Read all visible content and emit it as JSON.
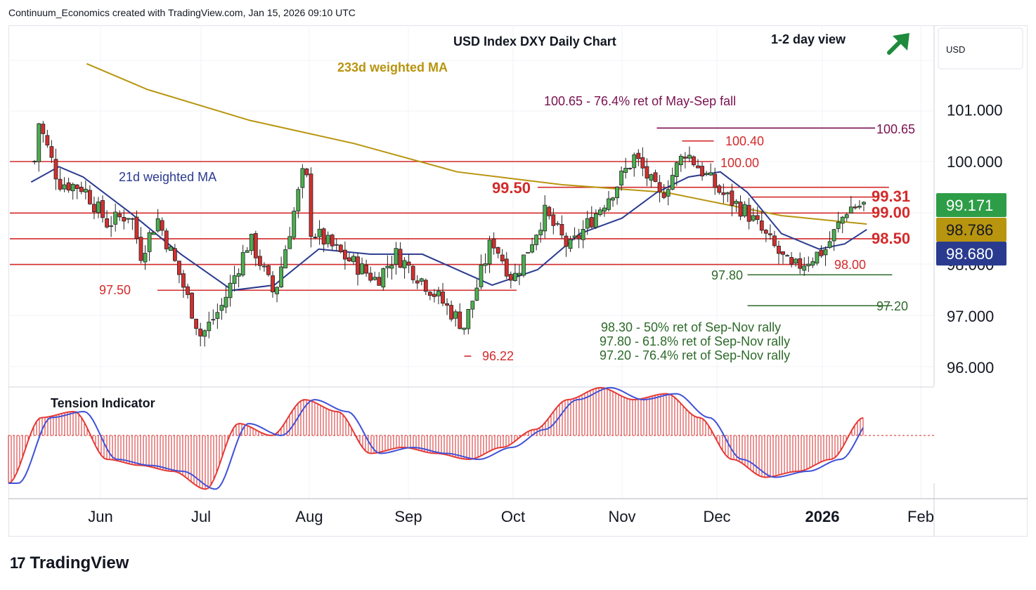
{
  "header": "Continuum_Economics created with TradingView.com, Jan 15, 2026 09:10 UTC",
  "footer": {
    "brand": "TradingView",
    "logo_icon": "tradingview-logo-icon"
  },
  "chart": {
    "title": "USD Index DXY Daily Chart",
    "view": "1-2 day view",
    "currency": "USD",
    "arrow_icon": "up-right-arrow-icon",
    "arrow_color": "#1e8a3c"
  },
  "chart_data": [
    {
      "type": "candlestick",
      "title": "USD Index DXY Daily Chart",
      "ylabel": "USD",
      "ylim": [
        95.7,
        101.95
      ],
      "y_ticks": [
        "96.000",
        "97.000",
        "98.000",
        "100.000",
        "101.000"
      ],
      "x_ticks": [
        "Jun",
        "Jul",
        "Aug",
        "Sep",
        "Oct",
        "Nov",
        "Dec",
        "2026",
        "Feb"
      ],
      "price_labels": [
        {
          "text": "99.171",
          "value": 99.171,
          "color": "#2e9d47"
        },
        {
          "text": "98.786",
          "value": 98.786,
          "color": "#b8950f"
        },
        {
          "text": "98.680",
          "value": 98.68,
          "color": "#2a3b8f"
        }
      ],
      "levels": [
        {
          "label": "100.65",
          "value": 100.65,
          "color": "#7a1050",
          "from": "Nov 12",
          "to": "Feb"
        },
        {
          "label": "100.40",
          "value": 100.4,
          "color": "#d42a2a",
          "from": "Nov 20",
          "to": "Nov 30"
        },
        {
          "label": "100.00",
          "value": 100.0,
          "color": "#d42a2a",
          "from": "May",
          "to": "Nov 30"
        },
        {
          "label": "99.50",
          "value": 99.5,
          "color": "#d42a2a",
          "from": "Oct 8",
          "to": "Jan 22"
        },
        {
          "label": "99.31",
          "value": 99.31,
          "color": "#d42a2a",
          "from": "Dec 11",
          "to": "Jan 19"
        },
        {
          "label": "99.00",
          "value": 99.0,
          "color": "#d42a2a",
          "from": "May",
          "to": "Jan 19"
        },
        {
          "label": "98.50",
          "value": 98.5,
          "color": "#d42a2a",
          "from": "May",
          "to": "Jan 19"
        },
        {
          "label": "98.00",
          "value": 98.0,
          "color": "#d42a2a",
          "from": "May",
          "to": "Dec 28"
        },
        {
          "label": "97.80",
          "value": 97.8,
          "color": "#2d6a2a",
          "from": "Dec 10",
          "to": "Jan 23"
        },
        {
          "label": "97.50",
          "value": 97.5,
          "color": "#d42a2a",
          "from": "Jun 18",
          "to": "Oct 2"
        },
        {
          "label": "97.20",
          "value": 97.2,
          "color": "#2d6a2a",
          "from": "Dec 10",
          "to": "Jan 23"
        },
        {
          "label": "96.22",
          "value": 96.22,
          "color": "#d42a2a",
          "from": "Sep 17",
          "to": "Sep 19"
        }
      ],
      "annotations": [
        {
          "text": "233d weighted MA",
          "color": "#b8950f"
        },
        {
          "text": "21d weighted MA",
          "color": "#2a3b8f"
        },
        {
          "text": "100.65 - 76.4% ret of May-Sep fall",
          "color": "#7a1050"
        },
        {
          "text": "98.30 - 50% ret of Sep-Nov rally",
          "color": "#2d6a2a"
        },
        {
          "text": "97.80 - 61.8% ret of Sep-Nov rally",
          "color": "#2d6a2a"
        },
        {
          "text": "97.20 - 76.4% ret of Sep-Nov rally",
          "color": "#2d6a2a"
        }
      ],
      "closes_anchor": [
        [
          "May 13",
          100.0
        ],
        [
          "May 14",
          100.8
        ],
        [
          "May 20",
          99.6
        ],
        [
          "May 27",
          99.5
        ],
        [
          "Jun 3",
          98.8
        ],
        [
          "Jun 10",
          99.0
        ],
        [
          "Jun 13",
          98.2
        ],
        [
          "Jun 18",
          98.9
        ],
        [
          "Jun 24",
          97.9
        ],
        [
          "Jul 1",
          96.6
        ],
        [
          "Jul 7",
          97.2
        ],
        [
          "Jul 15",
          98.5
        ],
        [
          "Jul 22",
          97.4
        ],
        [
          "Jul 31",
          100.0
        ],
        [
          "Aug 1",
          98.7
        ],
        [
          "Aug 11",
          98.2
        ],
        [
          "Aug 22",
          97.7
        ],
        [
          "Aug 28",
          98.2
        ],
        [
          "Sep 5",
          97.7
        ],
        [
          "Sep 17",
          96.8
        ],
        [
          "Sep 25",
          98.5
        ],
        [
          "Oct 1",
          97.7
        ],
        [
          "Oct 10",
          99.0
        ],
        [
          "Oct 17",
          98.3
        ],
        [
          "Oct 30",
          99.5
        ],
        [
          "Nov 5",
          100.1
        ],
        [
          "Nov 13",
          99.3
        ],
        [
          "Nov 21",
          100.2
        ],
        [
          "Dec 2",
          99.4
        ],
        [
          "Dec 10",
          99.0
        ],
        [
          "Dec 17",
          98.4
        ],
        [
          "Dec 23",
          97.9
        ],
        [
          "Jan 2",
          98.3
        ],
        [
          "Jan 9",
          99.1
        ],
        [
          "Jan 15",
          99.171
        ]
      ],
      "ma233": [
        [
          "May 28",
          101.9
        ],
        [
          "Jun 15",
          101.4
        ],
        [
          "Jul 15",
          100.8
        ],
        [
          "Aug 15",
          100.35
        ],
        [
          "Sep 15",
          99.8
        ],
        [
          "Oct 15",
          99.55
        ],
        [
          "Nov 15",
          99.4
        ],
        [
          "Dec 1",
          99.2
        ],
        [
          "Dec 20",
          98.95
        ],
        [
          "Jan 15",
          98.786
        ]
      ],
      "ma21": [
        [
          "May 12",
          99.6
        ],
        [
          "May 20",
          99.9
        ],
        [
          "May 27",
          99.7
        ],
        [
          "Jun 10",
          99.0
        ],
        [
          "Jun 25",
          98.2
        ],
        [
          "Jul 10",
          97.5
        ],
        [
          "Jul 22",
          97.6
        ],
        [
          "Aug 4",
          98.3
        ],
        [
          "Aug 20",
          98.2
        ],
        [
          "Sep 5",
          98.2
        ],
        [
          "Sep 15",
          97.9
        ],
        [
          "Sep 25",
          97.6
        ],
        [
          "Oct 8",
          97.9
        ],
        [
          "Oct 20",
          98.6
        ],
        [
          "Nov 1",
          98.9
        ],
        [
          "Nov 12",
          99.4
        ],
        [
          "Nov 22",
          99.7
        ],
        [
          "Dec 2",
          99.8
        ],
        [
          "Dec 10",
          99.4
        ],
        [
          "Dec 20",
          98.6
        ],
        [
          "Dec 31",
          98.3
        ],
        [
          "Jan 8",
          98.4
        ],
        [
          "Jan 15",
          98.68
        ]
      ]
    },
    {
      "type": "line",
      "title": "Tension Indicator",
      "series": [
        {
          "values_fast": [
            -0.8,
            0.3,
            0.4,
            -0.4,
            -0.5,
            -0.6,
            -0.9,
            0.2,
            0.0,
            0.6,
            0.4,
            -0.3,
            -0.2,
            -0.3,
            -0.4,
            -0.2,
            0.1,
            0.6,
            0.8,
            0.6,
            0.7,
            0.3,
            -0.4,
            -0.7,
            -0.6,
            -0.4,
            0.3
          ]
        }
      ]
    }
  ]
}
